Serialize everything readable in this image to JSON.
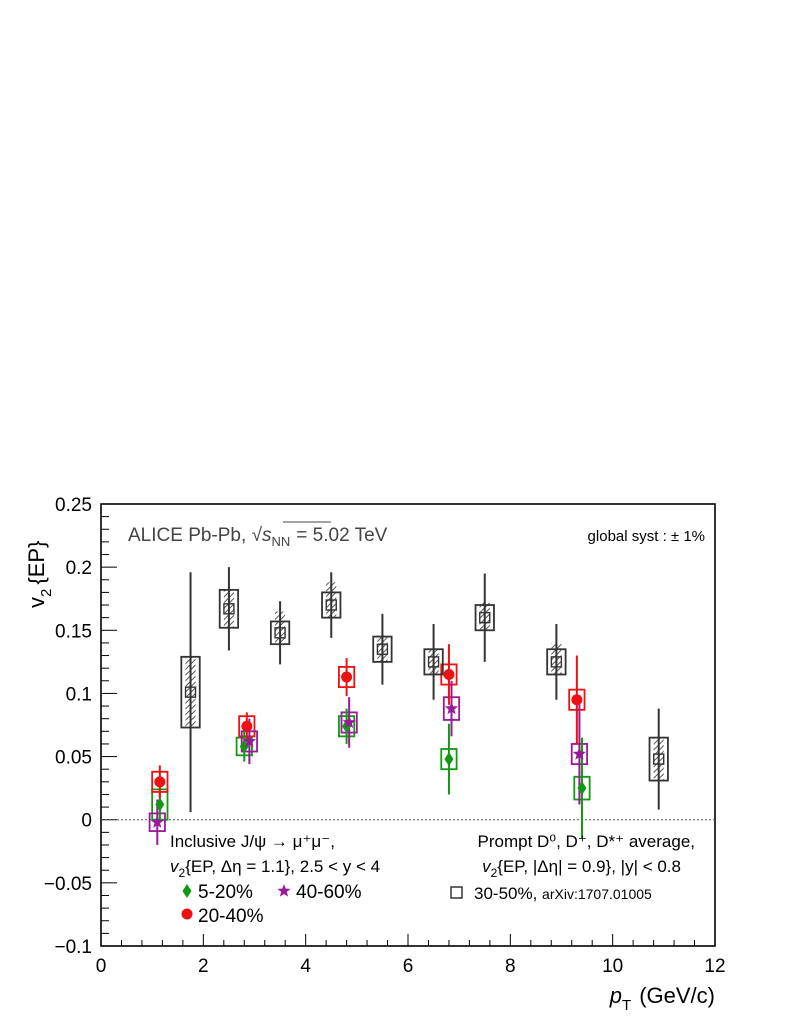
{
  "chart_data": {
    "type": "scatter",
    "experiment_label": "ALICE Pb-Pb, ",
    "energy_label": "= 5.02 TeV",
    "global_syst": "global syst : ± 1%",
    "xlabel": "(GeV/c)",
    "ylabel": "{EP}",
    "xlim": [
      0,
      12
    ],
    "ylim": [
      -0.1,
      0.25
    ],
    "x_ticks": [
      "0",
      "2",
      "4",
      "6",
      "8",
      "10",
      "12"
    ],
    "y_ticks": [
      "−0.1",
      "−0.05",
      "0",
      "0.05",
      "0.1",
      "0.15",
      "0.2",
      "0.25"
    ],
    "zero_line": true,
    "legend_left": {
      "title": "Inclusive J/ψ → μ⁺μ⁻,",
      "subtitle": "{EP, Δη = 1.1}, 2.5 < y < 4",
      "entries": [
        "5-20%",
        "40-60%",
        "20-40%"
      ]
    },
    "legend_right": {
      "title": "Prompt D⁰, D⁺, D*⁺ average,",
      "subtitle": "{EP, |Δη| = 0.9}, |y| < 0.8",
      "entry": "30-50%, ",
      "entry_ref": "arXiv:1707.01005"
    },
    "colors": {
      "5-20%": "#119911",
      "20-40%": "#ee1111",
      "40-60%": "#9a189a",
      "30-50%": "#333333"
    },
    "series": [
      {
        "name": "5-20%",
        "marker": "diamond",
        "points": [
          {
            "x": 1.15,
            "y": 0.012,
            "err": 0.014,
            "sx": 0.15,
            "sy": 0.012
          },
          {
            "x": 2.8,
            "y": 0.058,
            "err": 0.012,
            "sx": 0.15,
            "sy": 0.007
          },
          {
            "x": 4.8,
            "y": 0.074,
            "err": 0.014,
            "sx": 0.15,
            "sy": 0.008
          },
          {
            "x": 6.8,
            "y": 0.048,
            "err": 0.028,
            "sx": 0.15,
            "sy": 0.008
          },
          {
            "x": 9.4,
            "y": 0.025,
            "err": 0.04,
            "sx": 0.15,
            "sy": 0.009
          }
        ]
      },
      {
        "name": "20-40%",
        "marker": "circle",
        "points": [
          {
            "x": 1.15,
            "y": 0.03,
            "err": 0.013,
            "sx": 0.15,
            "sy": 0.008
          },
          {
            "x": 2.85,
            "y": 0.074,
            "err": 0.011,
            "sx": 0.15,
            "sy": 0.008
          },
          {
            "x": 4.8,
            "y": 0.113,
            "err": 0.015,
            "sx": 0.15,
            "sy": 0.008
          },
          {
            "x": 6.8,
            "y": 0.115,
            "err": 0.024,
            "sx": 0.15,
            "sy": 0.008
          },
          {
            "x": 9.3,
            "y": 0.095,
            "err": 0.035,
            "sx": 0.15,
            "sy": 0.008
          }
        ]
      },
      {
        "name": "40-60%",
        "marker": "star",
        "points": [
          {
            "x": 1.1,
            "y": -0.002,
            "err": 0.018,
            "sx": 0.15,
            "sy": 0.007
          },
          {
            "x": 2.9,
            "y": 0.062,
            "err": 0.018,
            "sx": 0.15,
            "sy": 0.008
          },
          {
            "x": 4.85,
            "y": 0.077,
            "err": 0.02,
            "sx": 0.15,
            "sy": 0.008
          },
          {
            "x": 6.85,
            "y": 0.088,
            "err": 0.022,
            "sx": 0.15,
            "sy": 0.009
          },
          {
            "x": 9.35,
            "y": 0.052,
            "err": 0.04,
            "sx": 0.15,
            "sy": 0.008
          }
        ]
      },
      {
        "name": "30-50%",
        "marker": "open-square",
        "points": [
          {
            "x": 1.75,
            "y": 0.101,
            "err": 0.095,
            "sx": 0.18,
            "sy": 0.028,
            "hatch_top": 0.101,
            "hatch_bottom": 0.101
          },
          {
            "x": 2.5,
            "y": 0.167,
            "err": 0.033,
            "sx": 0.18,
            "sy": 0.015,
            "hatch_top": 0.181,
            "hatch_bottom": 0.155
          },
          {
            "x": 3.5,
            "y": 0.148,
            "err": 0.025,
            "sx": 0.18,
            "sy": 0.009,
            "hatch_top": 0.165,
            "hatch_bottom": 0.14
          },
          {
            "x": 4.5,
            "y": 0.17,
            "err": 0.026,
            "sx": 0.18,
            "sy": 0.01,
            "hatch_top": 0.188,
            "hatch_bottom": 0.16
          },
          {
            "x": 5.5,
            "y": 0.135,
            "err": 0.028,
            "sx": 0.18,
            "sy": 0.01,
            "hatch_top": 0.146,
            "hatch_bottom": 0.126
          },
          {
            "x": 6.5,
            "y": 0.125,
            "err": 0.03,
            "sx": 0.18,
            "sy": 0.01,
            "hatch_top": 0.135,
            "hatch_bottom": 0.115
          },
          {
            "x": 7.5,
            "y": 0.16,
            "err": 0.035,
            "sx": 0.18,
            "sy": 0.01,
            "hatch_top": 0.172,
            "hatch_bottom": 0.152
          },
          {
            "x": 8.9,
            "y": 0.125,
            "err": 0.03,
            "sx": 0.18,
            "sy": 0.01,
            "hatch_top": 0.14,
            "hatch_bottom": 0.115
          },
          {
            "x": 10.9,
            "y": 0.048,
            "err": 0.04,
            "sx": 0.18,
            "sy": 0.017,
            "hatch_top": 0.05,
            "hatch_bottom": 0.046
          }
        ]
      }
    ]
  }
}
